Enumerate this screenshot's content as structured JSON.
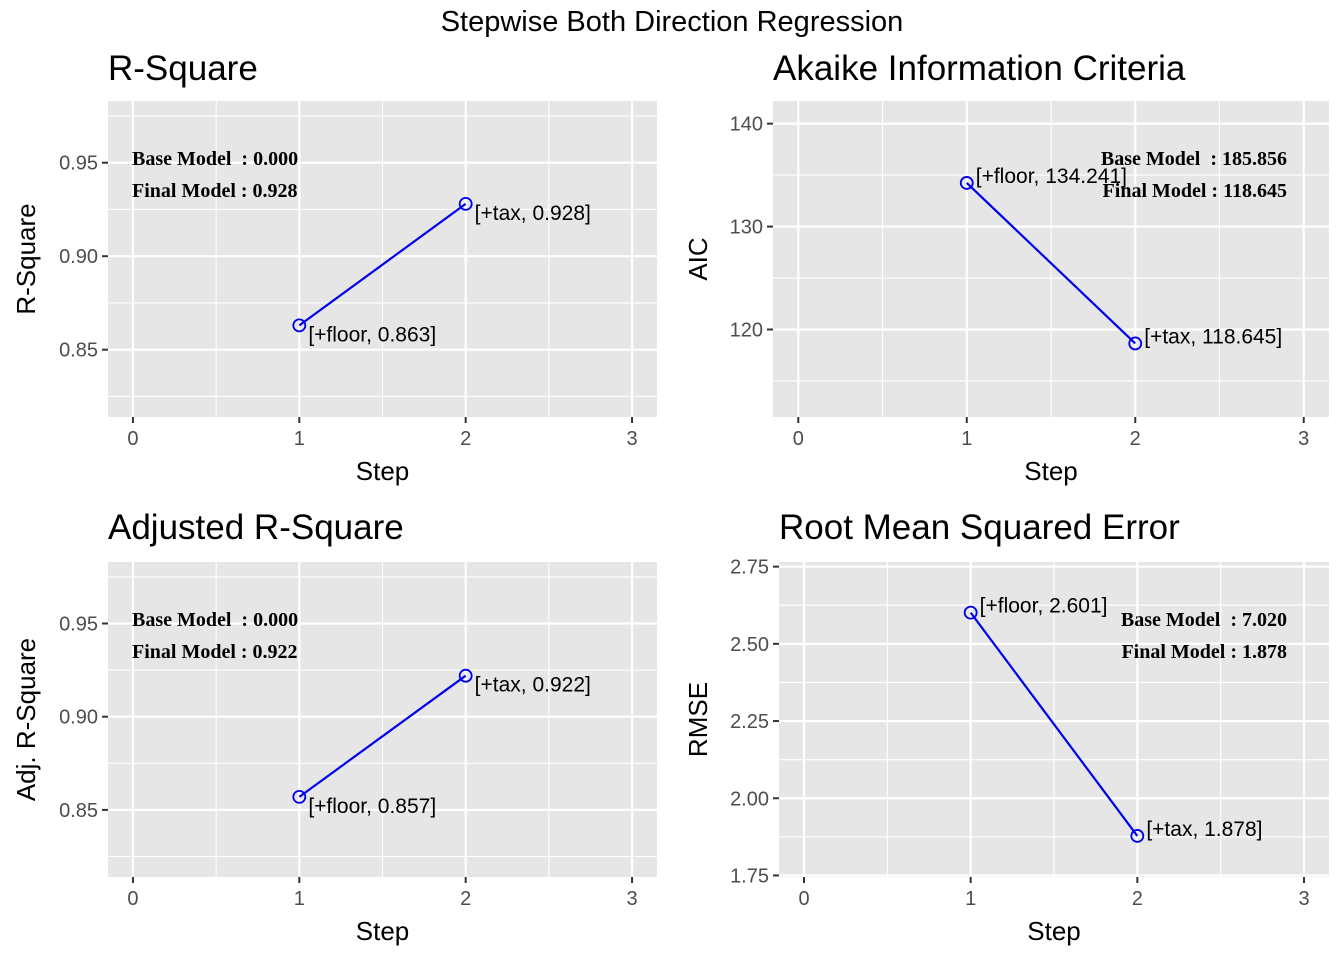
{
  "suptitle": "Stepwise Both Direction Regression",
  "colors": {
    "panel_bg": "#e6e6e6",
    "grid": "#ffffff",
    "series": "#0000ee",
    "tick": "#4d4d4d",
    "tick_mark": "#333333"
  },
  "chart_data": [
    {
      "type": "line",
      "title": "R-Square",
      "xlabel": "Step",
      "ylabel": "R-Square",
      "x": [
        1,
        2
      ],
      "y": [
        0.863,
        0.928
      ],
      "point_labels": [
        "[+floor, 0.863]",
        "[+tax, 0.928]"
      ],
      "xlim": [
        -0.15,
        3.15
      ],
      "ylim": [
        0.814,
        0.983
      ],
      "xticks": [
        0,
        1,
        2,
        3
      ],
      "yticks": [
        0.85,
        0.9,
        0.95
      ],
      "ytick_labels": [
        "0.85",
        "0.90",
        "0.95"
      ],
      "annotations": [
        "Base Model  : 0.000",
        "Final Model : 0.928"
      ],
      "annotation_position": "top-left",
      "grid": true
    },
    {
      "type": "line",
      "title": "Akaike Information Criteria",
      "xlabel": "Step",
      "ylabel": "AIC",
      "x": [
        1,
        2
      ],
      "y": [
        134.241,
        118.645
      ],
      "point_labels": [
        "[+floor, 134.241]",
        "[+tax, 118.645]"
      ],
      "xlim": [
        -0.15,
        3.15
      ],
      "ylim": [
        111.5,
        142.2
      ],
      "xticks": [
        0,
        1,
        2,
        3
      ],
      "yticks": [
        120,
        130,
        140
      ],
      "ytick_labels": [
        "120",
        "130",
        "140"
      ],
      "annotations": [
        "Base Model  : 185.856",
        "Final Model : 118.645"
      ],
      "annotation_position": "top-right",
      "grid": true
    },
    {
      "type": "line",
      "title": "Adjusted R-Square",
      "xlabel": "Step",
      "ylabel": "Adj. R-Square",
      "x": [
        1,
        2
      ],
      "y": [
        0.857,
        0.922
      ],
      "point_labels": [
        "[+floor, 0.857]",
        "[+tax, 0.922]"
      ],
      "xlim": [
        -0.15,
        3.15
      ],
      "ylim": [
        0.814,
        0.983
      ],
      "xticks": [
        0,
        1,
        2,
        3
      ],
      "yticks": [
        0.85,
        0.9,
        0.95
      ],
      "ytick_labels": [
        "0.85",
        "0.90",
        "0.95"
      ],
      "annotations": [
        "Base Model  : 0.000",
        "Final Model : 0.922"
      ],
      "annotation_position": "top-left",
      "grid": true
    },
    {
      "type": "line",
      "title": "Root Mean Squared Error",
      "xlabel": "Step",
      "ylabel": "RMSE",
      "x": [
        1,
        2
      ],
      "y": [
        2.601,
        1.878
      ],
      "point_labels": [
        "[+floor, 2.601]",
        "[+tax, 1.878]"
      ],
      "xlim": [
        -0.15,
        3.15
      ],
      "ylim": [
        1.745,
        2.765
      ],
      "xticks": [
        0,
        1,
        2,
        3
      ],
      "yticks": [
        1.75,
        2.0,
        2.25,
        2.5,
        2.75
      ],
      "ytick_labels": [
        "1.75",
        "2.00",
        "2.25",
        "2.50",
        "2.75"
      ],
      "annotations": [
        "Base Model  : 7.020",
        "Final Model : 1.878"
      ],
      "annotation_position": "top-right",
      "grid": true
    }
  ]
}
